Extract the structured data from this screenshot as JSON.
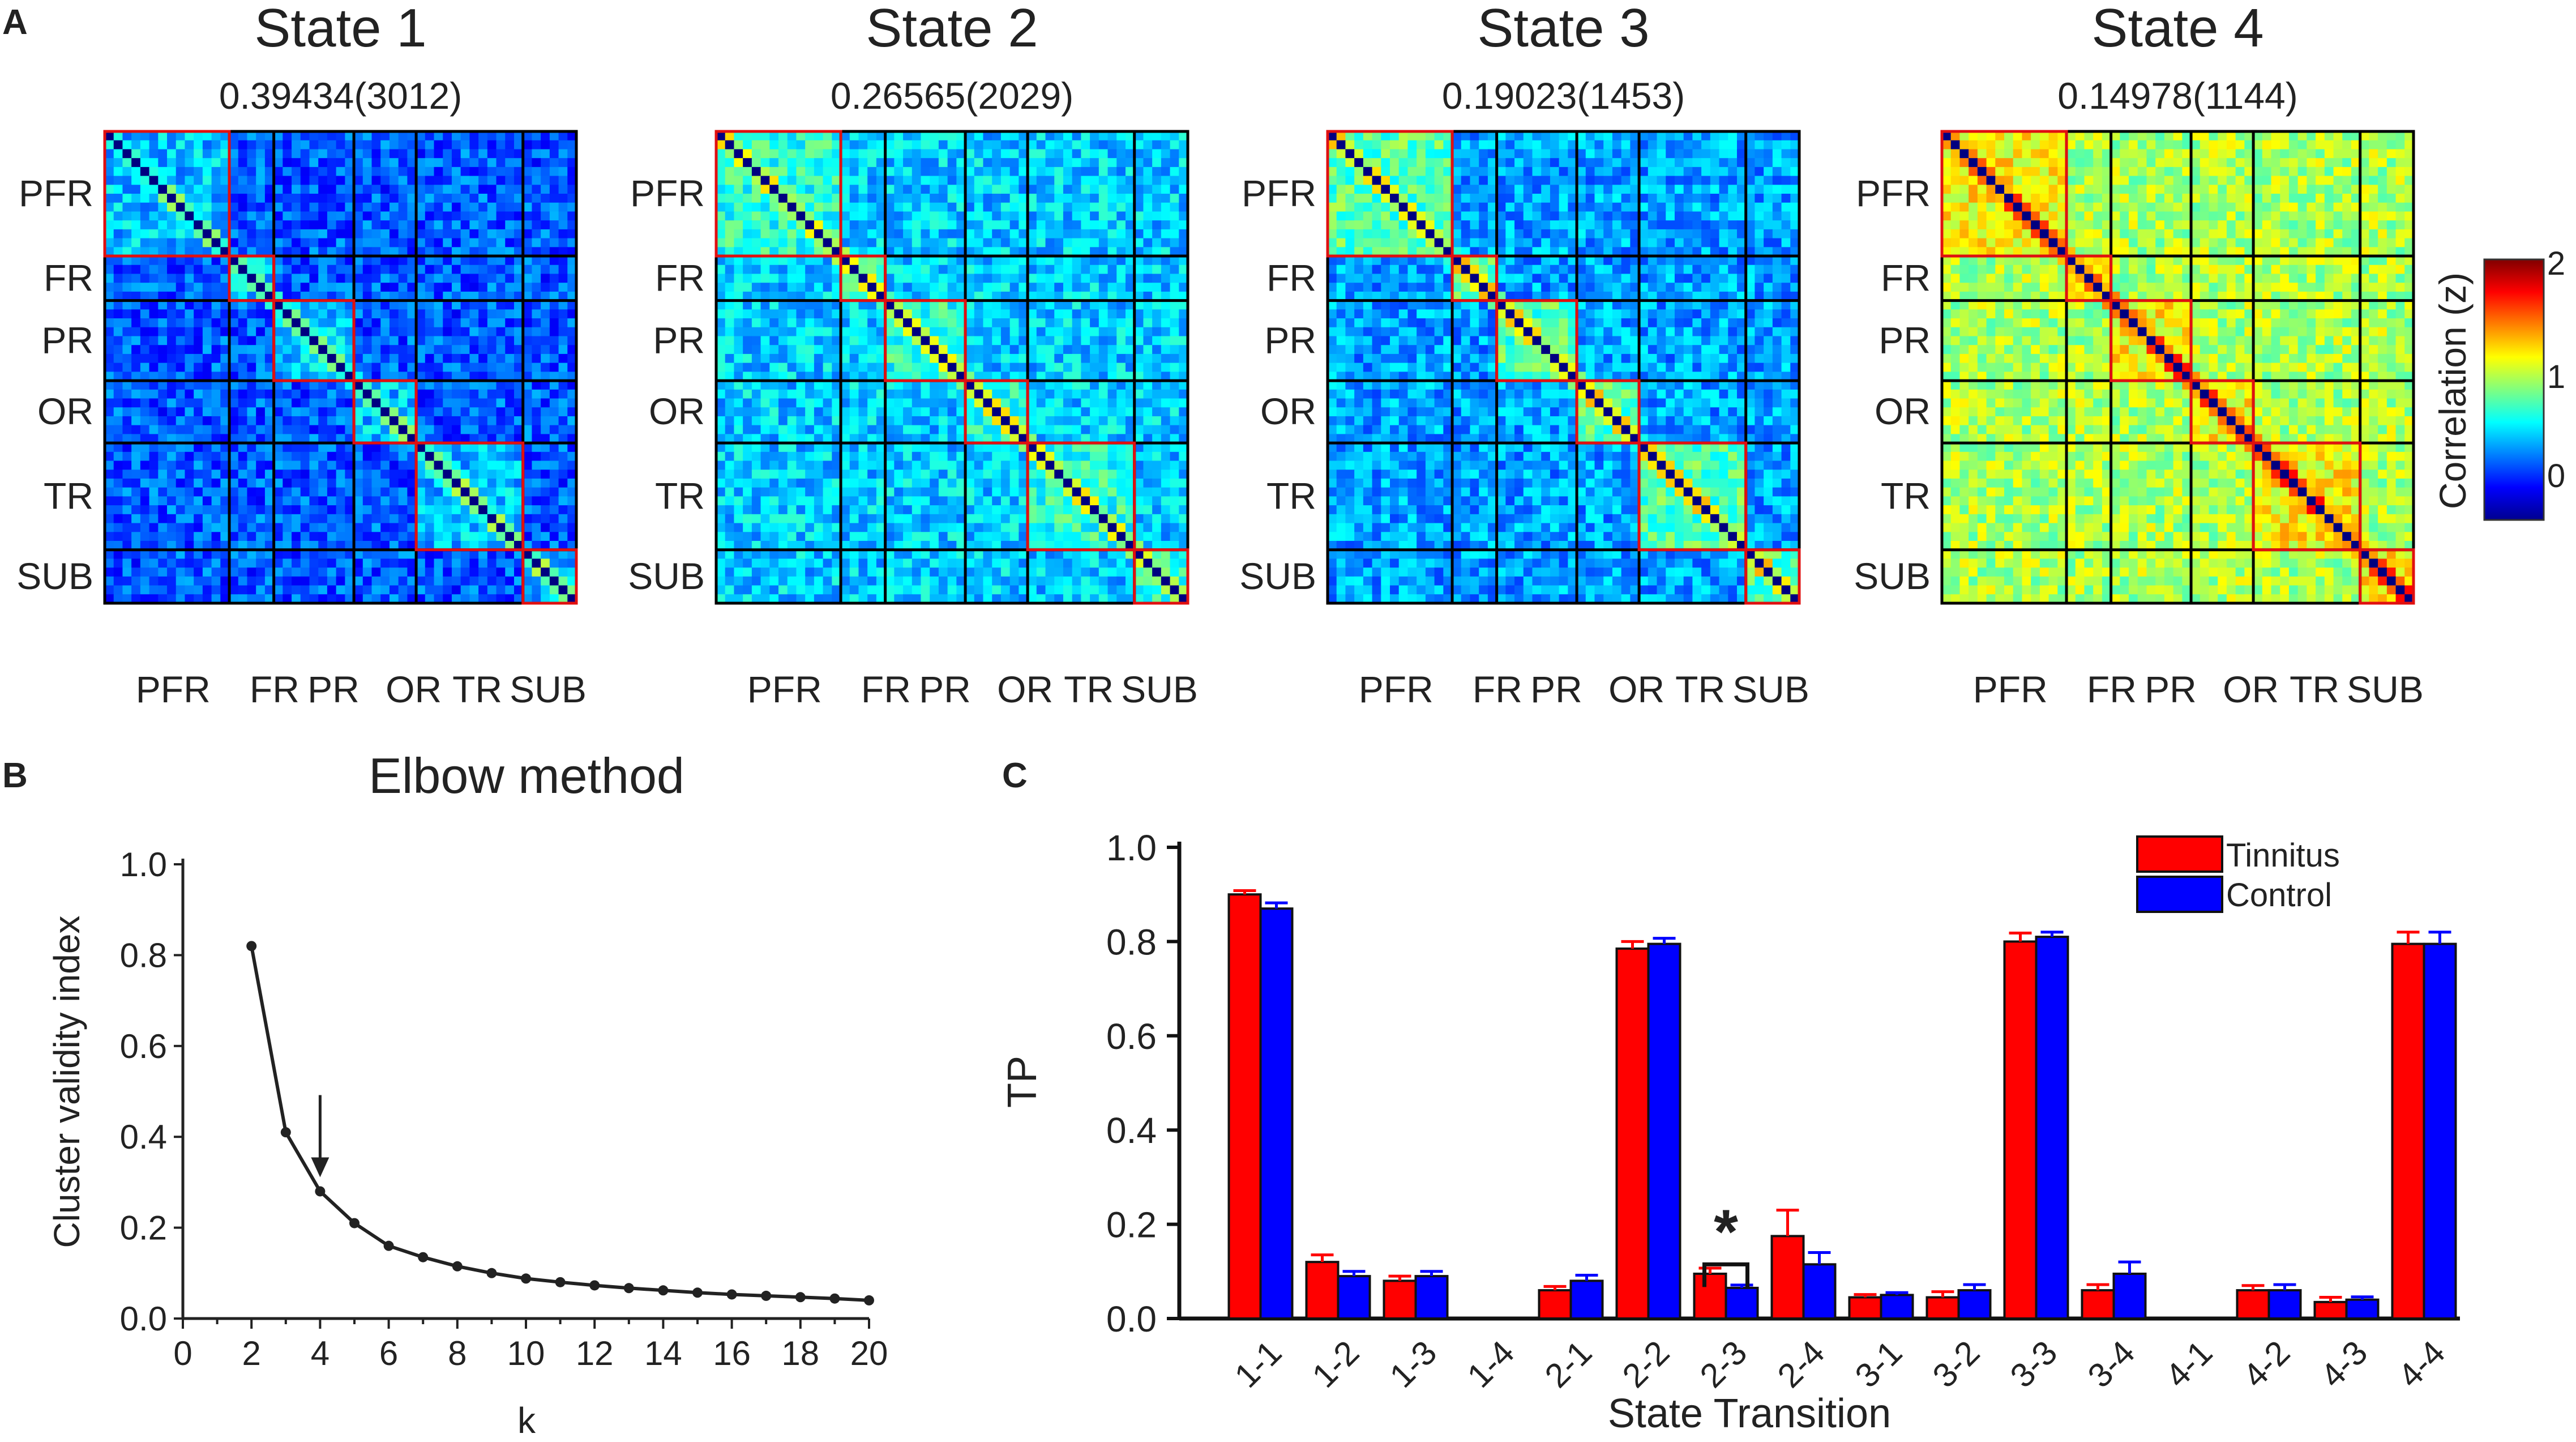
{
  "chart_data": [
    {
      "panel": "A",
      "type": "heatmap",
      "colorbar": {
        "label": "Correlation (z)",
        "ticks": [
          "2",
          "1",
          "0"
        ],
        "range": [
          -0.3,
          2
        ]
      },
      "regions": [
        "PFR",
        "FR",
        "PR",
        "OR",
        "TR",
        "SUB"
      ],
      "region_x_labels": [
        "PFR",
        "FR",
        "PR",
        "OR",
        "TR",
        "SUB"
      ],
      "region_sizes": [
        14,
        5,
        9,
        7,
        12,
        6
      ],
      "states": [
        {
          "title": "State 1",
          "subtitle": "0.39434(3012)",
          "base": 0.18,
          "within": 0.42
        },
        {
          "title": "State 2",
          "subtitle": "0.26565(2029)",
          "base": 0.45,
          "within": 0.65
        },
        {
          "title": "State 3",
          "subtitle": "0.19023(1453)",
          "base": 0.35,
          "within": 0.75
        },
        {
          "title": "State 4",
          "subtitle": "0.14978(1144)",
          "base": 0.95,
          "within": 1.15
        }
      ]
    },
    {
      "panel": "B",
      "type": "line",
      "title": "Elbow method",
      "xlabel": "k",
      "ylabel": "Cluster validity index",
      "xlim": [
        0,
        20
      ],
      "ylim": [
        0,
        1
      ],
      "xticks": [
        "0",
        "2",
        "4",
        "6",
        "8",
        "10",
        "12",
        "14",
        "16",
        "18",
        "20"
      ],
      "yticks": [
        "0.0",
        "0.2",
        "0.4",
        "0.6",
        "0.8",
        "1.0"
      ],
      "x": [
        2,
        3,
        4,
        5,
        6,
        7,
        8,
        9,
        10,
        11,
        12,
        13,
        14,
        15,
        16,
        17,
        18,
        19,
        20
      ],
      "y": [
        0.82,
        0.41,
        0.28,
        0.21,
        0.16,
        0.135,
        0.115,
        0.1,
        0.088,
        0.08,
        0.073,
        0.067,
        0.062,
        0.057,
        0.053,
        0.05,
        0.047,
        0.044,
        0.04
      ],
      "annotation": {
        "type": "arrow",
        "at_k": 4
      }
    },
    {
      "panel": "C",
      "type": "bar",
      "xlabel": "State Transition",
      "ylabel": "TP",
      "ylim": [
        0,
        1
      ],
      "yticks": [
        "0.0",
        "0.2",
        "0.4",
        "0.6",
        "0.8",
        "1.0"
      ],
      "categories": [
        "1-1",
        "1-2",
        "1-3",
        "1-4",
        "2-1",
        "2-2",
        "2-3",
        "2-4",
        "3-1",
        "3-2",
        "3-3",
        "3-4",
        "4-1",
        "4-2",
        "4-3",
        "4-4"
      ],
      "series": [
        {
          "name": "Tinnitus",
          "color": "#ff0000",
          "values": [
            0.9,
            0.12,
            0.08,
            0,
            0.06,
            0.785,
            0.095,
            0.175,
            0.045,
            0.045,
            0.8,
            0.06,
            0,
            0.06,
            0.035,
            0.795
          ],
          "errors": [
            0.008,
            0.015,
            0.01,
            0,
            0.008,
            0.015,
            0.012,
            0.055,
            0.006,
            0.012,
            0.018,
            0.012,
            0,
            0.01,
            0.01,
            0.025
          ]
        },
        {
          "name": "Control",
          "color": "#0000ff",
          "values": [
            0.87,
            0.09,
            0.09,
            0,
            0.08,
            0.795,
            0.065,
            0.115,
            0.05,
            0.06,
            0.81,
            0.095,
            0,
            0.06,
            0.04,
            0.795
          ],
          "errors": [
            0.012,
            0.01,
            0.01,
            0,
            0.012,
            0.012,
            0.006,
            0.025,
            0.005,
            0.012,
            0.01,
            0.025,
            0,
            0.012,
            0.006,
            0.025
          ]
        }
      ],
      "significance": {
        "category": "2-3",
        "label": "*"
      }
    }
  ],
  "panel_labels": {
    "a": "A",
    "b": "B",
    "c": "C"
  }
}
